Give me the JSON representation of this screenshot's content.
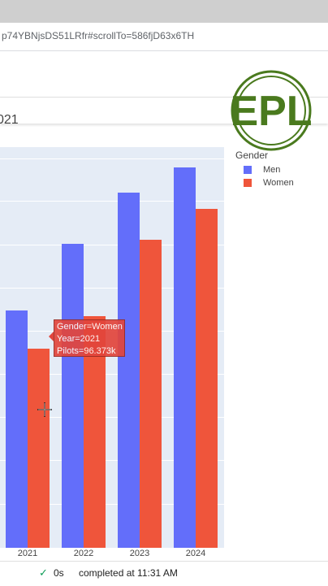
{
  "browser": {
    "url": "p74YBNjsDS51LRfr#scrollTo=586fjD63x6TH"
  },
  "notebook": {
    "title_fragment": "021"
  },
  "logo": {
    "text": "EPL",
    "color": "#4a7a1e"
  },
  "chart_data": {
    "type": "bar",
    "categories": [
      "2021",
      "2022",
      "2023",
      "2024"
    ],
    "legend_title": "Gender",
    "legend_placement": "top-right",
    "series": [
      {
        "name": "Men",
        "color": "#636efa",
        "values": [
          115,
          147,
          172,
          184
        ]
      },
      {
        "name": "Women",
        "color": "#ef553b",
        "values": [
          96.373,
          112,
          149,
          164
        ]
      }
    ],
    "ylim": [
      0,
      194
    ],
    "grid": true
  },
  "tooltip": {
    "line1": "Gender=Women",
    "line2": "Year=2021",
    "line3": "Pilots=96.373k"
  },
  "status": {
    "check": "✓",
    "duration": "0s",
    "message": "completed at 11:31 AM"
  }
}
